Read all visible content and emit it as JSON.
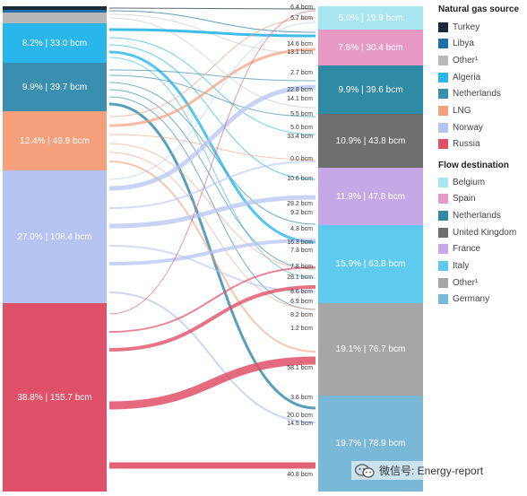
{
  "sources": [
    {
      "key": "turkey",
      "name": "Turkey",
      "color": "#1b2a3a",
      "label": ""
    },
    {
      "key": "libya",
      "name": "Libya",
      "color": "#1f70a8",
      "label": ""
    },
    {
      "key": "other",
      "name": "Other¹",
      "color": "#b8b8b8",
      "label": ""
    },
    {
      "key": "algeria",
      "name": "Algeria",
      "color": "#29b6ea",
      "label": "8.2% | 33.0 bcm"
    },
    {
      "key": "netherlands",
      "name": "Netherlands",
      "color": "#3a8fb0",
      "label": "9.9% | 39.7 bcm"
    },
    {
      "key": "lng",
      "name": "LNG",
      "color": "#f4a07c",
      "label": "12.4% | 49.8 bcm"
    },
    {
      "key": "norway",
      "name": "Norway",
      "color": "#b6c4f2",
      "label": "27.0% | 108.4 bcm"
    },
    {
      "key": "russia",
      "name": "Russia",
      "color": "#e05068",
      "label": "38.8% | 155.7 bcm"
    }
  ],
  "destinations": [
    {
      "key": "belgium",
      "name": "Belgium",
      "color": "#a8e6ef",
      "label": "5.0% | 19.9 bcm"
    },
    {
      "key": "spain",
      "name": "Spain",
      "color": "#e89ac6",
      "label": "7.6% | 30.4 bcm"
    },
    {
      "key": "netherlands",
      "name": "Netherlands",
      "color": "#2f8aa6",
      "label": "9.9% | 39.6 bcm"
    },
    {
      "key": "uk",
      "name": "United Kingdom",
      "color": "#6e6e6e",
      "label": "10.9% | 43.8 bcm"
    },
    {
      "key": "france",
      "name": "France",
      "color": "#c6a8e6",
      "label": "11.9% | 47.8 bcm"
    },
    {
      "key": "italy",
      "name": "Italy",
      "color": "#5ecbee",
      "label": "15.9% | 63.8 bcm"
    },
    {
      "key": "other",
      "name": "Other¹",
      "color": "#a6a6a6",
      "label": "19.1% | 76.7 bcm"
    },
    {
      "key": "germany",
      "name": "Germany",
      "color": "#7ab8d8",
      "label": "19.7% | 78.9 bcm"
    }
  ],
  "legend": {
    "source_title": "Natural gas source",
    "destination_title": "Flow destination"
  },
  "flow_labels": [
    "6.4 bcm",
    "5.7 bcm",
    "14.6 bcm",
    "13.1 bcm",
    "2.7 bcm",
    "22.8 bcm",
    "14.1 bcm",
    "5.5 bcm",
    "5.0 bcm",
    "33.4 bcm",
    "0.0 bcm",
    "10.6 bcm",
    "28.2 bcm",
    "9.2 bcm",
    "4.3 bcm",
    "16.3 bcm",
    "7.3 bcm",
    "28.1 bcm",
    "7.8 bcm",
    "8.6 bcm",
    "6.9 bcm",
    "8.2 bcm",
    "1.2 bcm",
    "58.1 bcm",
    "3.6 bcm",
    "20.0 bcm",
    "14.5 bcm",
    "40.8 bcm"
  ],
  "watermark": "微信号: Energy-report"
}
